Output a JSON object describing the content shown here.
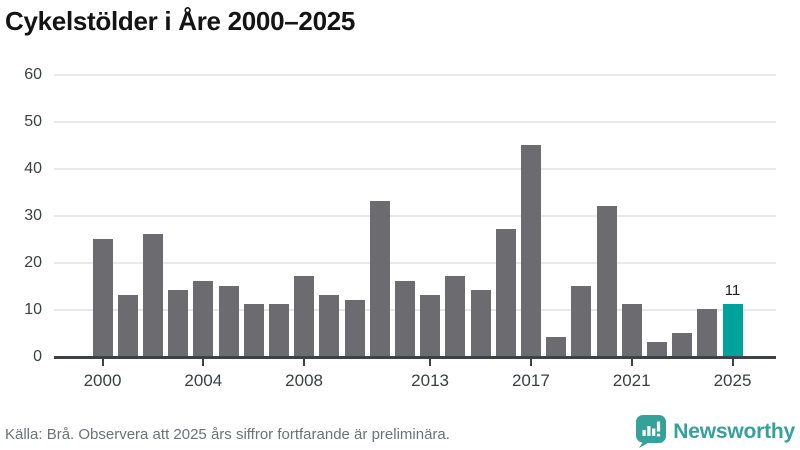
{
  "title": "Cykelstölder i Åre 2000–2025",
  "footer": {
    "source": "Källa: Brå. Observera att 2025 års siffror fortfarande är preliminära.",
    "logo_text": "Newsworthy"
  },
  "colors": {
    "bar": "#6c6c70",
    "highlight": "#00a39b",
    "axis": "#3f4144",
    "gridline": "#e9e9e9",
    "tick_label": "#3c3f42",
    "logo": "#35a19a"
  },
  "chart_data": {
    "type": "bar",
    "title": "Cykelstölder i Åre 2000–2025",
    "x": [
      2000,
      2001,
      2002,
      2003,
      2004,
      2005,
      2006,
      2007,
      2008,
      2009,
      2010,
      2011,
      2012,
      2013,
      2014,
      2015,
      2016,
      2017,
      2018,
      2019,
      2020,
      2021,
      2022,
      2023,
      2024,
      2025
    ],
    "values": [
      25,
      13,
      26,
      14,
      16,
      15,
      11,
      11,
      17,
      13,
      12,
      33,
      16,
      13,
      17,
      14,
      27,
      45,
      4,
      15,
      32,
      11,
      3,
      5,
      10,
      11
    ],
    "x_tick_labels": [
      "2000",
      "2004",
      "2008",
      "2013",
      "2017",
      "2021",
      "2025"
    ],
    "y_ticks": [
      0,
      10,
      20,
      30,
      40,
      50,
      60
    ],
    "ylim": [
      0,
      60
    ],
    "grid": true,
    "legend": null,
    "highlight": {
      "x": 2025,
      "value": 11,
      "label": "11"
    }
  }
}
